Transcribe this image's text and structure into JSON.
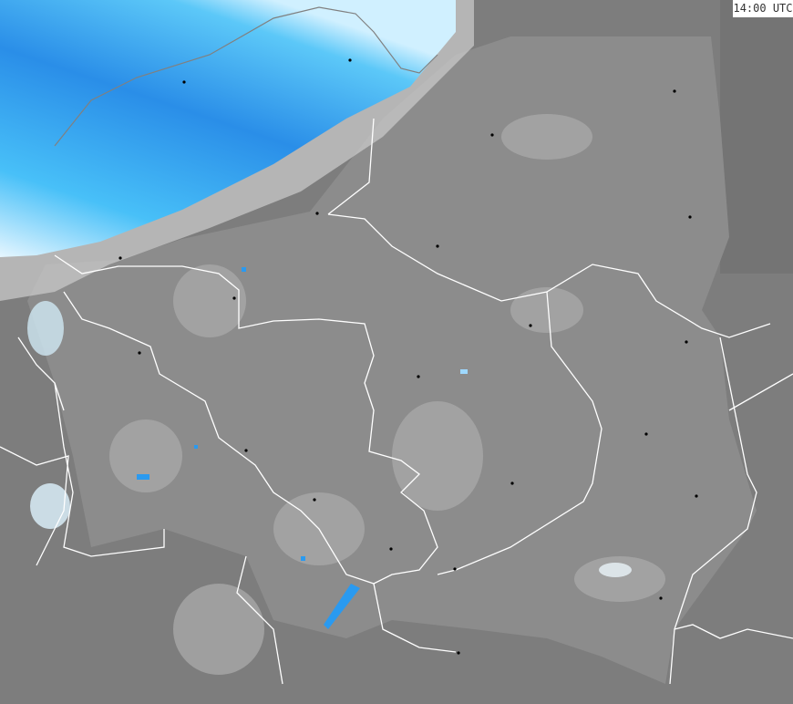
{
  "timestamp": "14:00 UTC",
  "colors": {
    "background": "#7d7d7d",
    "land_focus": "#8c8c8c",
    "precip_light": "#d8f2ff",
    "precip_mid": "#3ab8f5",
    "precip_heavy": "#1a78d8",
    "borders": "#ffffff",
    "city_marker": "#000000"
  }
}
